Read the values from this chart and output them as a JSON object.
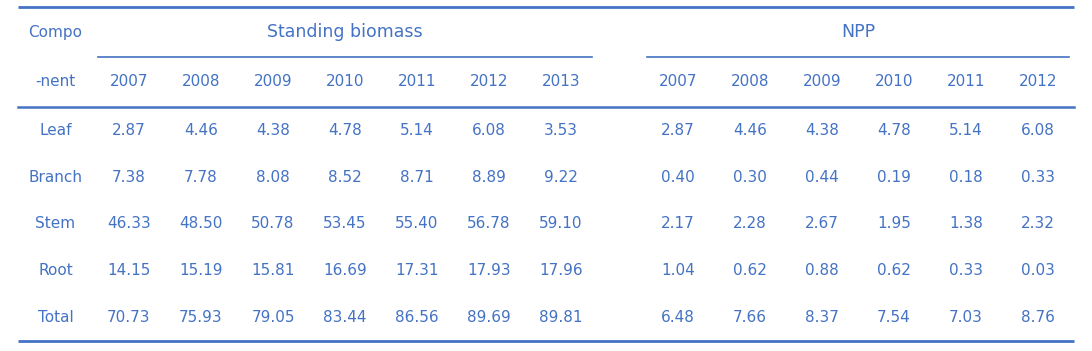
{
  "header_row1_comp": "Compo",
  "header_row1_sb": "Standing biomass",
  "header_row1_npp": "NPP",
  "header_row2_comp": "-nent",
  "years_sb": [
    "2007",
    "2008",
    "2009",
    "2010",
    "2011",
    "2012",
    "2013"
  ],
  "years_npp": [
    "2007",
    "2008",
    "2009",
    "2010",
    "2011",
    "2012"
  ],
  "rows": [
    [
      "Leaf",
      "2.87",
      "4.46",
      "4.38",
      "4.78",
      "5.14",
      "6.08",
      "3.53",
      "2.87",
      "4.46",
      "4.38",
      "4.78",
      "5.14",
      "6.08"
    ],
    [
      "Branch",
      "7.38",
      "7.78",
      "8.08",
      "8.52",
      "8.71",
      "8.89",
      "9.22",
      "0.40",
      "0.30",
      "0.44",
      "0.19",
      "0.18",
      "0.33"
    ],
    [
      "Stem",
      "46.33",
      "48.50",
      "50.78",
      "53.45",
      "55.40",
      "56.78",
      "59.10",
      "2.17",
      "2.28",
      "2.67",
      "1.95",
      "1.38",
      "2.32"
    ],
    [
      "Root",
      "14.15",
      "15.19",
      "15.81",
      "16.69",
      "17.31",
      "17.93",
      "17.96",
      "1.04",
      "0.62",
      "0.88",
      "0.62",
      "0.33",
      "0.03"
    ],
    [
      "Total",
      "70.73",
      "75.93",
      "79.05",
      "83.44",
      "86.56",
      "89.69",
      "89.81",
      "6.48",
      "7.66",
      "8.37",
      "7.54",
      "7.03",
      "8.76"
    ]
  ],
  "text_color": "#4472c4",
  "line_color": "#4472c4",
  "bg_color": "#ffffff",
  "font_size": 11.0,
  "header_font_size": 12.5
}
